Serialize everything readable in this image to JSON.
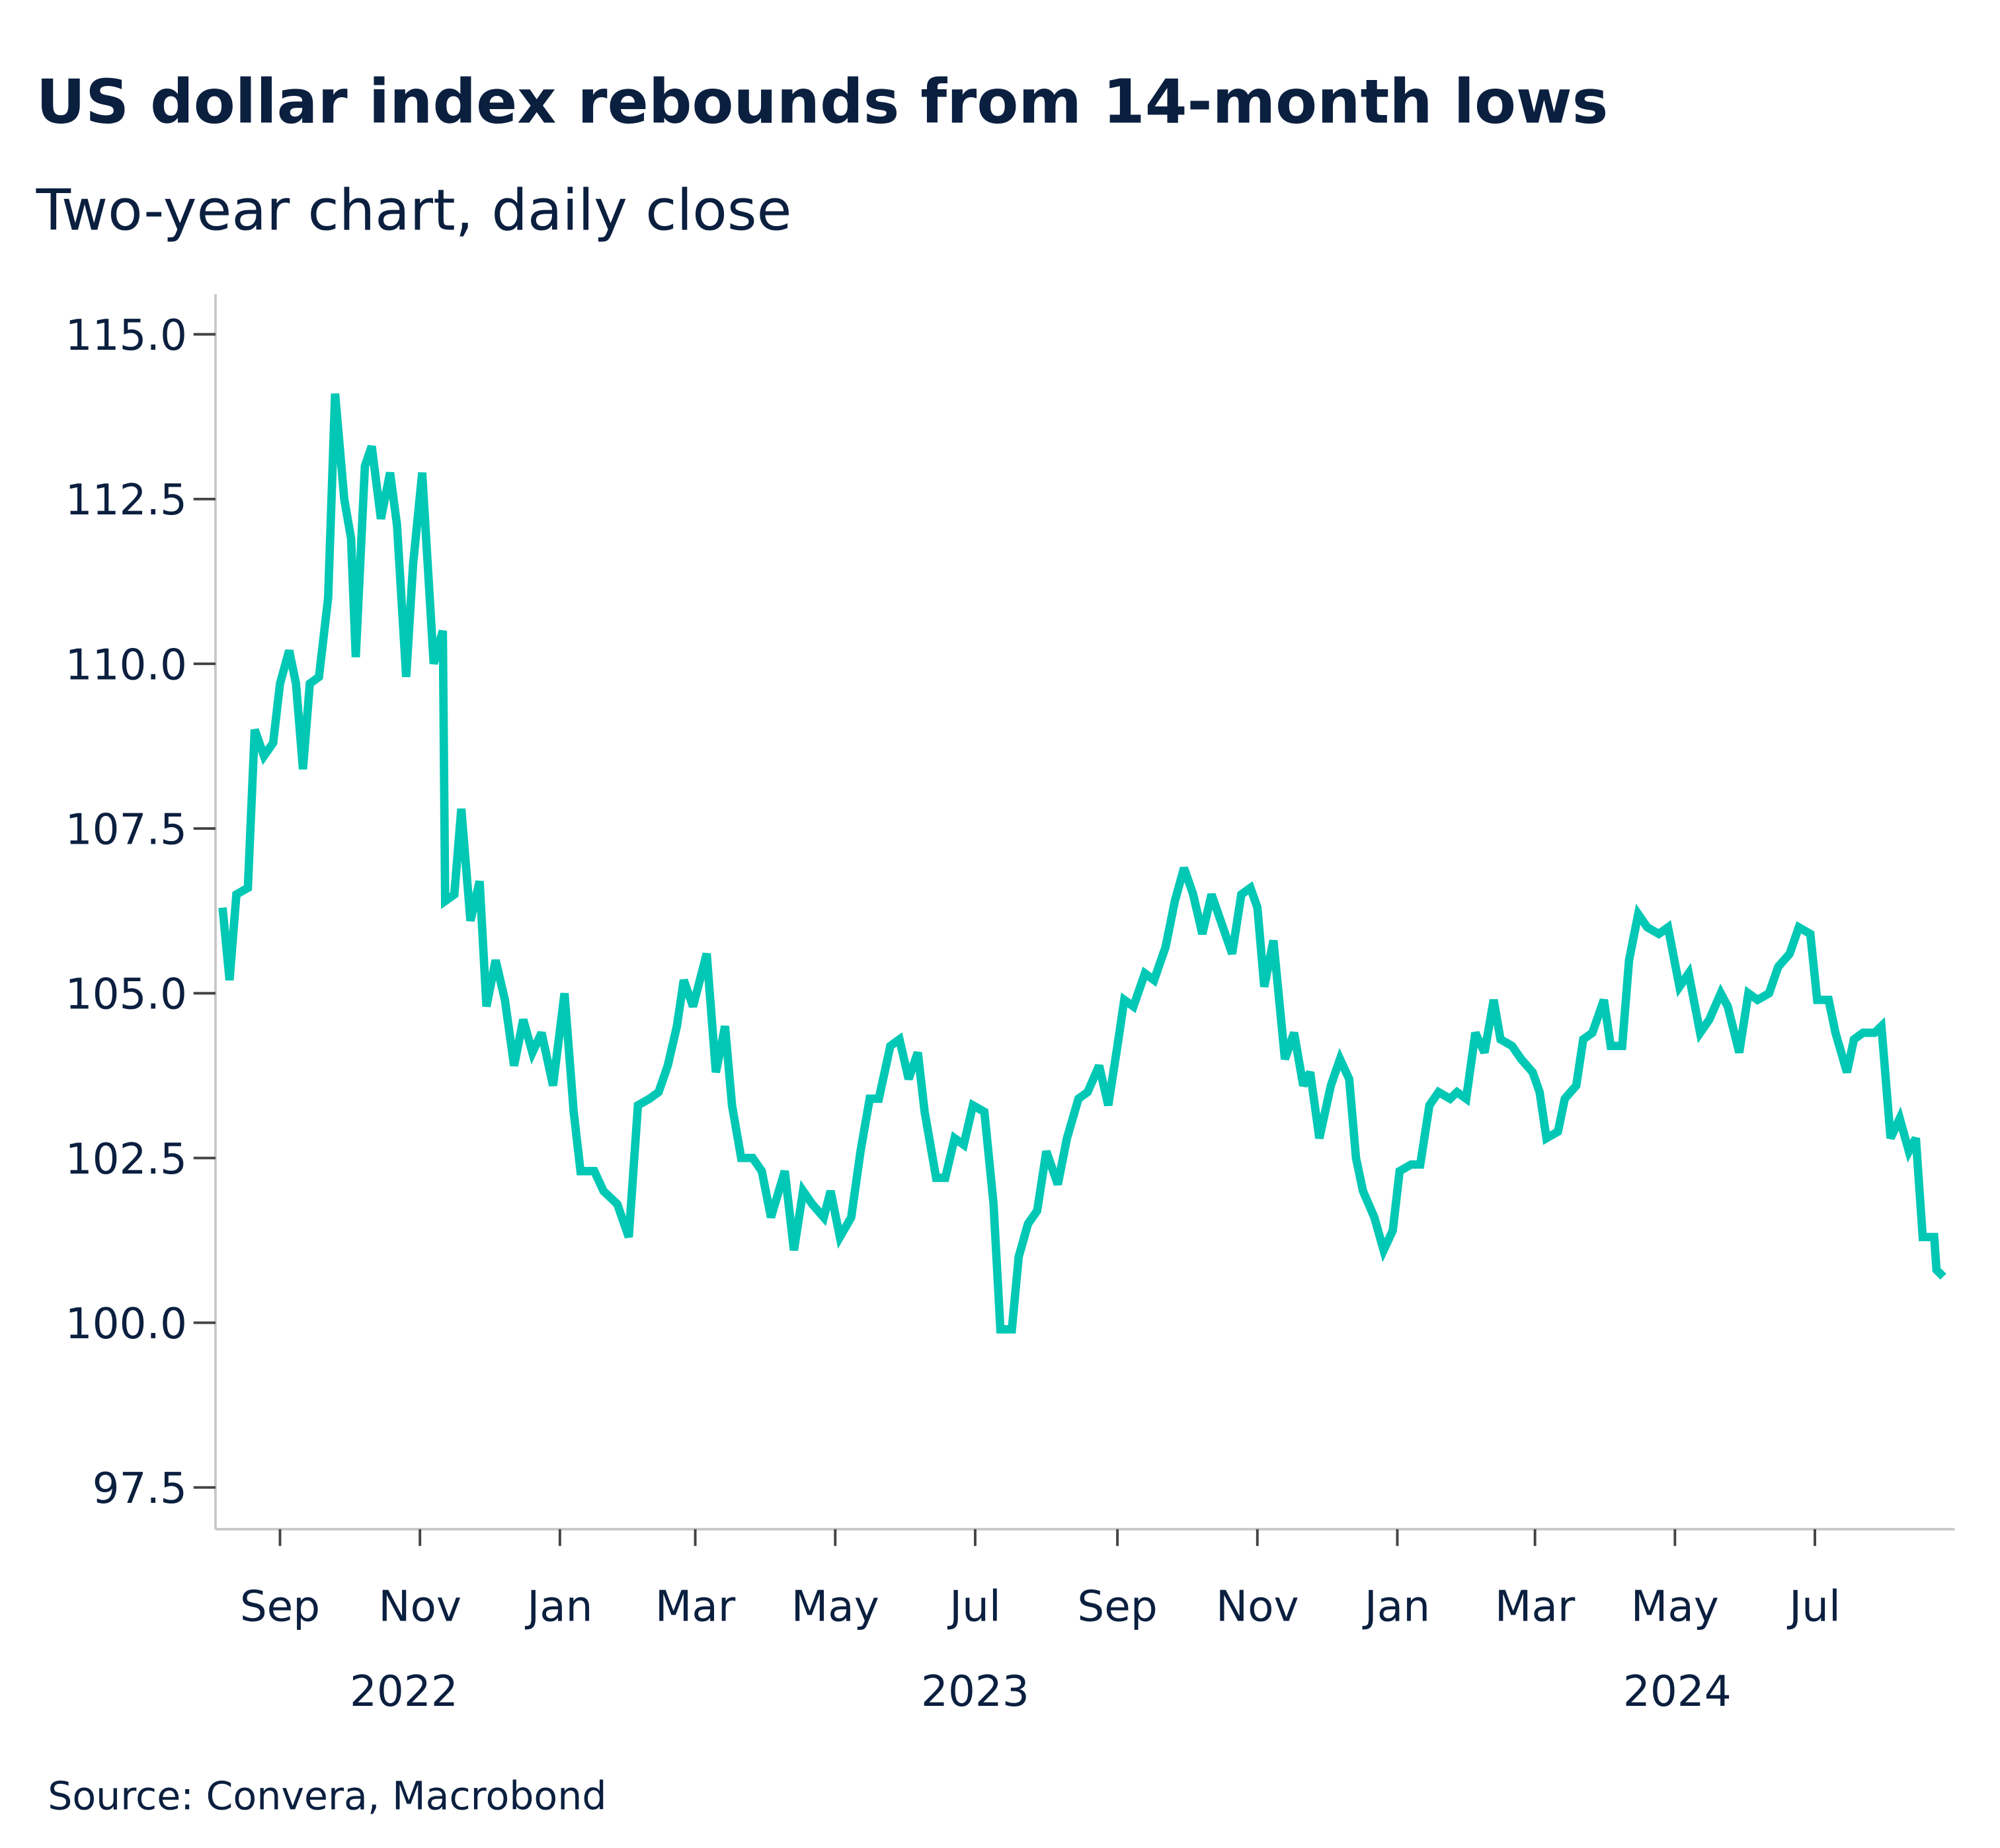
{
  "chart_data": {
    "type": "line",
    "title": "US dollar index rebounds from 14-month lows",
    "subtitle": "Two-year chart, daily close",
    "source": "Source: Convera, Macrobond",
    "xlabel": "",
    "ylabel": "",
    "ylim": [
      96.9,
      115.6
    ],
    "yticks": [
      "97.5",
      "100.0",
      "102.5",
      "105.0",
      "107.5",
      "110.0",
      "112.5",
      "115.0"
    ],
    "xticks": [
      {
        "label": "Sep",
        "date": "2022-09-01"
      },
      {
        "label": "Nov",
        "date": "2022-11-01"
      },
      {
        "label": "Jan",
        "date": "2023-01-01"
      },
      {
        "label": "Mar",
        "date": "2023-03-01"
      },
      {
        "label": "May",
        "date": "2023-05-01"
      },
      {
        "label": "Jul",
        "date": "2023-07-01"
      },
      {
        "label": "Sep",
        "date": "2023-09-01"
      },
      {
        "label": "Nov",
        "date": "2023-11-01"
      },
      {
        "label": "Jan",
        "date": "2024-01-01"
      },
      {
        "label": "Mar",
        "date": "2024-03-01"
      },
      {
        "label": "May",
        "date": "2024-05-01"
      },
      {
        "label": "Jul",
        "date": "2024-07-01"
      }
    ],
    "years": [
      {
        "label": "2022",
        "date": "2022-10-25"
      },
      {
        "label": "2023",
        "date": "2023-07-01"
      },
      {
        "label": "2024",
        "date": "2024-05-02"
      }
    ],
    "grid": false,
    "line_color": "#00c8b4",
    "text_color": "#0b1f3f",
    "series": [
      {
        "x": [
          "2022-08-07",
          "2022-08-10",
          "2022-08-13",
          "2022-08-18",
          "2022-08-21",
          "2022-08-25",
          "2022-08-29",
          "2022-09-01",
          "2022-09-05",
          "2022-09-08",
          "2022-09-11",
          "2022-09-14",
          "2022-09-18",
          "2022-09-22",
          "2022-09-25",
          "2022-09-29",
          "2022-10-02",
          "2022-10-04",
          "2022-10-08",
          "2022-10-11",
          "2022-10-15",
          "2022-10-19",
          "2022-10-22",
          "2022-10-26",
          "2022-10-29",
          "2022-11-02",
          "2022-11-07",
          "2022-11-11",
          "2022-11-12",
          "2022-11-16",
          "2022-11-19",
          "2022-11-23",
          "2022-11-27",
          "2022-11-30",
          "2022-12-04",
          "2022-12-08",
          "2022-12-12",
          "2022-12-16",
          "2022-12-20",
          "2022-12-24",
          "2022-12-29",
          "2023-01-03",
          "2023-01-07",
          "2023-01-10",
          "2023-01-16",
          "2023-01-20",
          "2023-01-26",
          "2023-01-31",
          "2023-02-04",
          "2023-02-09",
          "2023-02-13",
          "2023-02-17",
          "2023-02-21",
          "2023-02-24",
          "2023-02-28",
          "2023-03-06",
          "2023-03-10",
          "2023-03-14",
          "2023-03-17",
          "2023-03-21",
          "2023-03-26",
          "2023-03-30",
          "2023-04-03",
          "2023-04-09",
          "2023-04-13",
          "2023-04-17",
          "2023-04-21",
          "2023-04-26",
          "2023-04-29",
          "2023-05-03",
          "2023-05-08",
          "2023-05-12",
          "2023-05-16",
          "2023-05-20",
          "2023-05-25",
          "2023-05-29",
          "2023-06-02",
          "2023-06-06",
          "2023-06-09",
          "2023-06-14",
          "2023-06-18",
          "2023-06-22",
          "2023-06-26",
          "2023-06-30",
          "2023-07-05",
          "2023-07-09",
          "2023-07-12",
          "2023-07-17",
          "2023-07-20",
          "2023-07-24",
          "2023-07-28",
          "2023-08-01",
          "2023-08-06",
          "2023-08-10",
          "2023-08-15",
          "2023-08-19",
          "2023-08-24",
          "2023-08-28",
          "2023-09-01",
          "2023-09-04",
          "2023-09-08",
          "2023-09-13",
          "2023-09-17",
          "2023-09-22",
          "2023-09-26",
          "2023-09-30",
          "2023-10-04",
          "2023-10-08",
          "2023-10-12",
          "2023-10-17",
          "2023-10-21",
          "2023-10-25",
          "2023-10-29",
          "2023-11-01",
          "2023-11-04",
          "2023-11-08",
          "2023-11-13",
          "2023-11-17",
          "2023-11-21",
          "2023-11-24",
          "2023-11-28",
          "2023-12-03",
          "2023-12-07",
          "2023-12-11",
          "2023-12-14",
          "2023-12-17",
          "2023-12-22",
          "2023-12-26",
          "2023-12-30",
          "2024-01-02",
          "2024-01-07",
          "2024-01-11",
          "2024-01-15",
          "2024-01-19",
          "2024-01-24",
          "2024-01-27",
          "2024-01-31",
          "2024-02-04",
          "2024-02-08",
          "2024-02-12",
          "2024-02-15",
          "2024-02-20",
          "2024-02-24",
          "2024-02-29",
          "2024-03-03",
          "2024-03-06",
          "2024-03-11",
          "2024-03-14",
          "2024-03-19",
          "2024-03-22",
          "2024-03-26",
          "2024-03-31",
          "2024-04-03",
          "2024-04-08",
          "2024-04-11",
          "2024-04-15",
          "2024-04-19",
          "2024-04-24",
          "2024-04-28",
          "2024-05-03",
          "2024-05-07",
          "2024-05-12",
          "2024-05-16",
          "2024-05-21",
          "2024-05-24",
          "2024-05-29",
          "2024-06-02",
          "2024-06-06",
          "2024-06-11",
          "2024-06-15",
          "2024-06-20",
          "2024-06-24",
          "2024-06-29",
          "2024-07-02",
          "2024-07-07",
          "2024-07-10",
          "2024-07-15",
          "2024-07-18",
          "2024-07-22",
          "2024-07-27",
          "2024-07-30",
          "2024-08-03",
          "2024-08-07",
          "2024-08-11",
          "2024-08-14",
          "2024-08-17",
          "2024-08-22",
          "2024-08-23",
          "2024-08-26"
        ],
        "y": [
          106.3,
          105.2,
          106.5,
          106.6,
          109.0,
          108.6,
          108.8,
          109.7,
          110.2,
          109.7,
          108.4,
          109.7,
          109.8,
          111.0,
          114.1,
          112.5,
          111.9,
          110.1,
          113.0,
          113.3,
          112.2,
          112.9,
          112.1,
          109.8,
          111.5,
          112.9,
          110.0,
          110.5,
          106.4,
          106.5,
          107.8,
          106.1,
          106.7,
          104.8,
          105.5,
          104.9,
          103.9,
          104.6,
          104.1,
          104.4,
          103.6,
          105.0,
          103.2,
          102.3,
          102.3,
          102.0,
          101.8,
          101.3,
          103.3,
          103.4,
          103.5,
          103.9,
          104.5,
          105.2,
          104.8,
          105.6,
          103.8,
          104.5,
          103.3,
          102.5,
          102.5,
          102.3,
          101.6,
          102.3,
          101.1,
          102.0,
          101.8,
          101.6,
          102.0,
          101.3,
          101.6,
          102.6,
          103.4,
          103.4,
          104.2,
          104.3,
          103.7,
          104.1,
          103.2,
          102.2,
          102.2,
          102.8,
          102.7,
          103.3,
          103.2,
          101.8,
          99.9,
          99.9,
          101.0,
          101.5,
          101.7,
          102.6,
          102.1,
          102.8,
          103.4,
          103.5,
          103.9,
          103.3,
          104.2,
          104.9,
          104.8,
          105.3,
          105.2,
          105.7,
          106.4,
          106.9,
          106.5,
          105.9,
          106.5,
          106.0,
          105.6,
          106.5,
          106.6,
          106.3,
          105.1,
          105.8,
          104.0,
          104.4,
          103.6,
          103.8,
          102.8,
          103.6,
          104.0,
          103.7,
          102.5,
          102.0,
          101.6,
          101.1,
          101.4,
          102.3,
          102.4,
          102.4,
          103.3,
          103.5,
          103.4,
          103.5,
          103.4,
          104.4,
          104.1,
          104.9,
          104.3,
          104.2,
          104.0,
          103.8,
          103.5,
          102.8,
          102.9,
          103.4,
          103.6,
          104.3,
          104.4,
          104.9,
          104.2,
          104.2,
          105.5,
          106.2,
          106.0,
          105.9,
          106.0,
          105.1,
          105.3,
          104.4,
          104.6,
          105.0,
          104.8,
          104.1,
          105.0,
          104.9,
          105.0,
          105.4,
          105.6,
          106.0,
          105.9,
          104.9,
          104.9,
          104.4,
          103.8,
          104.3,
          104.4,
          104.4,
          104.5,
          102.8,
          103.1,
          102.6,
          102.8,
          101.3,
          101.3,
          100.8,
          100.7
        ]
      }
    ]
  }
}
